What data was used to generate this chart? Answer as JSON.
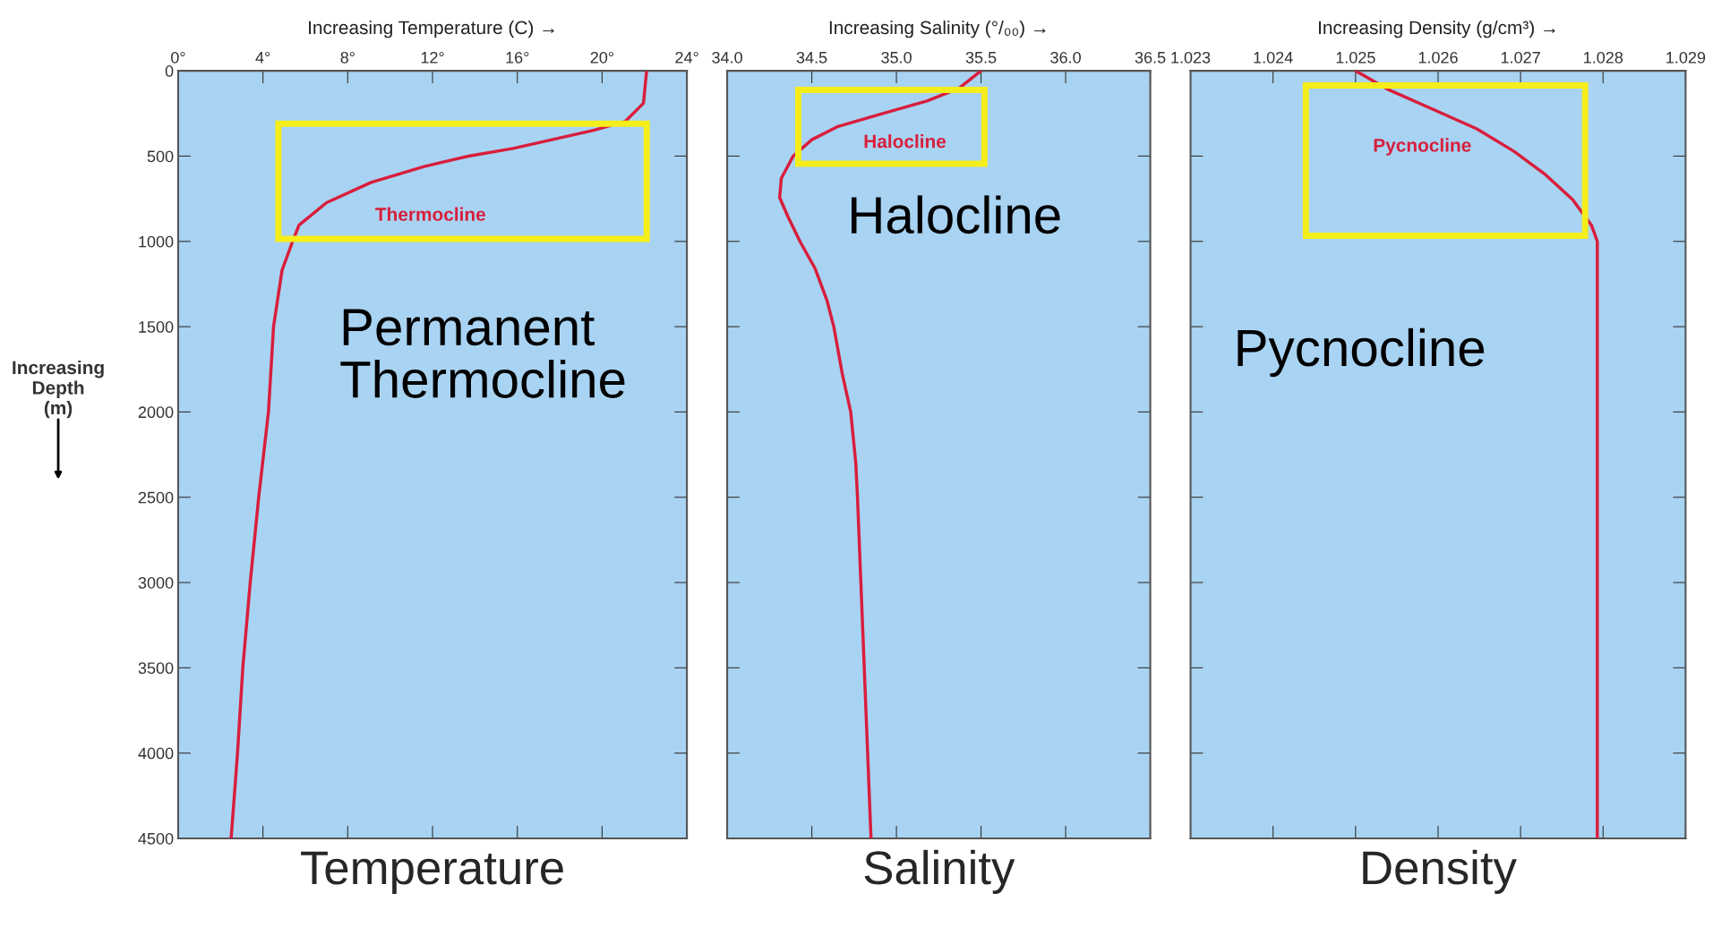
{
  "chart_data": [
    {
      "type": "line",
      "title": "Temperature",
      "xlabel": "Increasing Temperature (C) →",
      "ylabel": "Increasing\nDepth\n(m)",
      "xlim": [
        0,
        24
      ],
      "xticks": [
        {
          "value": 0,
          "label": "0°"
        },
        {
          "value": 4,
          "label": "4°"
        },
        {
          "value": 8,
          "label": "8°"
        },
        {
          "value": 12,
          "label": "12°"
        },
        {
          "value": 16,
          "label": "16°"
        },
        {
          "value": 20,
          "label": "20°"
        },
        {
          "value": 24,
          "label": "24°"
        }
      ],
      "ylim": [
        4500,
        0
      ],
      "yticks": [
        0,
        500,
        1000,
        1500,
        2000,
        2500,
        3000,
        3500,
        4000,
        4500
      ],
      "series": [
        {
          "color": "#d81e3c",
          "x": [
            22.1,
            21.95,
            21.1,
            19.6,
            15.8,
            13.7,
            11.6,
            9.1,
            7.0,
            5.7,
            5.4,
            4.9,
            4.5,
            4.26,
            3.8,
            3.4,
            3.05,
            2.8,
            2.5
          ],
          "values": [
            0,
            190,
            296,
            349,
            455,
            500,
            561,
            654,
            773,
            905,
            1000,
            1170,
            1500,
            2000,
            2500,
            3000,
            3500,
            4000,
            4500
          ]
        }
      ],
      "annotations": [
        "Thermocline",
        "Permanent\nThermocline"
      ],
      "grid": false
    },
    {
      "type": "line",
      "title": "Salinity",
      "xlabel": "Increasing Salinity (°/₀₀) →",
      "xlim": [
        34.0,
        36.5
      ],
      "xticks": [
        {
          "value": 34.0,
          "label": "34.0"
        },
        34.5,
        {
          "value": 35.0,
          "label": "35.0"
        },
        35.5,
        {
          "value": 36.0,
          "label": "36.0"
        },
        36.5
      ],
      "ylim": [
        4500,
        0
      ],
      "yticks": [
        0,
        500,
        1000,
        1500,
        2000,
        2500,
        3000,
        3500,
        4000,
        4500
      ],
      "tick_labels": "x",
      "series": [
        {
          "color": "#d81e3c",
          "x": [
            35.5,
            35.37,
            35.18,
            34.91,
            34.65,
            34.5,
            34.39,
            34.32,
            34.31,
            34.36,
            34.43,
            34.52,
            34.59,
            34.63,
            34.68,
            34.73,
            34.76,
            34.77,
            34.79,
            34.81,
            34.83,
            34.85
          ],
          "values": [
            0,
            102,
            177,
            253,
            328,
            404,
            500,
            630,
            743,
            857,
            1000,
            1160,
            1347,
            1500,
            1775,
            2000,
            2300,
            2500,
            3000,
            3500,
            4000,
            4500
          ]
        }
      ],
      "annotations": [
        "Halocline",
        "Halocline"
      ],
      "grid": false
    },
    {
      "type": "line",
      "title": "Density",
      "xlabel": "Increasing Density (g/cm³) →",
      "xlim": [
        1.023,
        1.029
      ],
      "xticks": [
        1.023,
        1.024,
        1.025,
        1.026,
        1.027,
        1.028,
        1.029
      ],
      "ylim": [
        4500,
        0
      ],
      "yticks": [
        0,
        500,
        1000,
        1500,
        2000,
        2500,
        3000,
        3500,
        4000,
        4500
      ],
      "tick_labels": "x",
      "series": [
        {
          "color": "#d81e3c",
          "x": [
            1.025,
            1.02541,
            1.02594,
            1.02647,
            1.02692,
            1.02729,
            1.02763,
            1.02786,
            1.02793,
            1.02793
          ],
          "values": [
            0,
            113,
            226,
            340,
            472,
            604,
            755,
            906,
            1000,
            4500
          ]
        }
      ],
      "annotations": [
        "Pycnocline",
        "Pycnocline"
      ],
      "grid": false
    }
  ]
}
